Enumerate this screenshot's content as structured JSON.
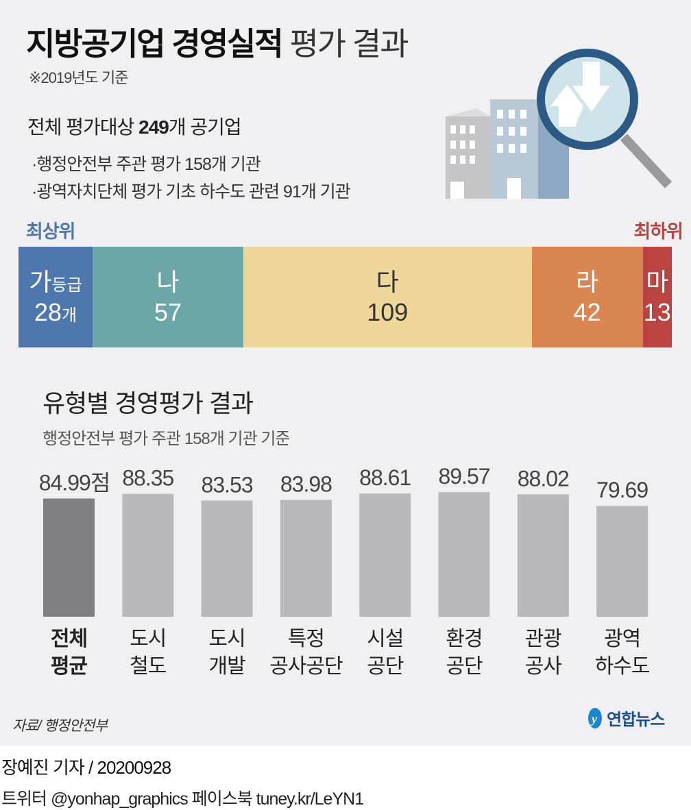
{
  "header": {
    "title_bold": "지방공기업 경영실적",
    "title_light": "평가 결과",
    "basis": "※2019년도 기준"
  },
  "summary": {
    "prefix": "전체 평가대상",
    "count": "249",
    "suffix": "개 공기업",
    "items": [
      "·행정안전부 주관 평가 158개 기관",
      "·광역자치단체 평가 기초 하수도 관련 91개 기관"
    ]
  },
  "grades": {
    "top_label": "최상위",
    "bottom_label": "최하위",
    "items": [
      {
        "grade": "가",
        "grade_suffix": "등급",
        "count": 28,
        "count_suffix": "개",
        "color": "#4e77ad",
        "text": "#ffffff"
      },
      {
        "grade": "나",
        "grade_suffix": "",
        "count": 57,
        "count_suffix": "",
        "color": "#6ca6a7",
        "text": "#ffffff"
      },
      {
        "grade": "다",
        "grade_suffix": "",
        "count": 109,
        "count_suffix": "",
        "color": "#efd79b",
        "text": "#333333"
      },
      {
        "grade": "라",
        "grade_suffix": "",
        "count": 42,
        "count_suffix": "",
        "color": "#d98652",
        "text": "#ffffff"
      },
      {
        "grade": "마",
        "grade_suffix": "",
        "count": 13,
        "count_suffix": "",
        "color": "#b94442",
        "text": "#ffffff"
      }
    ]
  },
  "chart_data": {
    "type": "bar",
    "title": "유형별 경영평가 결과",
    "subtitle": "행정안전부 평가 주관 158개 기관 기준",
    "categories": [
      [
        "전체",
        "평균"
      ],
      [
        "도시",
        "철도"
      ],
      [
        "도시",
        "개발"
      ],
      [
        "특정",
        "공사공단"
      ],
      [
        "시설",
        "공단"
      ],
      [
        "환경",
        "공단"
      ],
      [
        "관광",
        "공사"
      ],
      [
        "광역",
        "하수도"
      ]
    ],
    "values": [
      84.99,
      88.35,
      83.53,
      83.98,
      88.61,
      89.57,
      88.02,
      79.69
    ],
    "labels": [
      "84.99점",
      "88.35",
      "83.53",
      "83.98",
      "88.61",
      "89.57",
      "88.02",
      "79.69"
    ],
    "unit": "점",
    "ylim": [
      0,
      100
    ],
    "colors": {
      "highlight": "#808083",
      "normal": "#b9b9bc"
    }
  },
  "footer": {
    "source": "자료/ 행정안전부",
    "logo": "연합뉴스",
    "byline": "장예진 기자 / 20200928",
    "social": "트위터 @yonhap_graphics  페이스북 tuney.kr/LeYN1"
  }
}
